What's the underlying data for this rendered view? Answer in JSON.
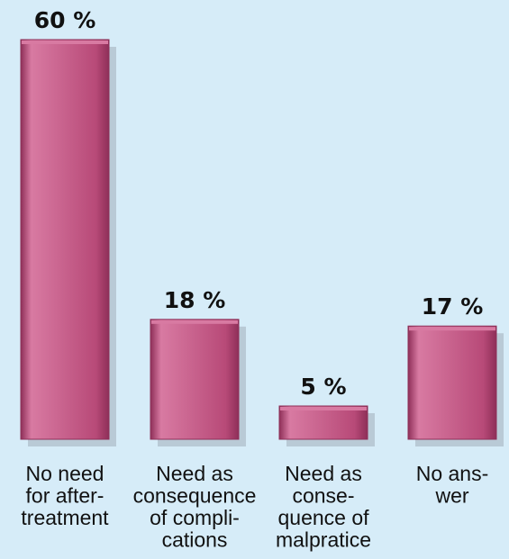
{
  "chart_data": {
    "type": "bar",
    "categories": [
      [
        "No need",
        "for after-",
        "treatment"
      ],
      [
        "Need as",
        "consequence",
        "of compli-",
        "cations"
      ],
      [
        "Need as",
        "conse-",
        "quence of",
        "malpratice"
      ],
      [
        "No ans-",
        "wer"
      ]
    ],
    "values": [
      60,
      18,
      5,
      17
    ],
    "value_labels": [
      "60 %",
      "18 %",
      "5 %",
      "17 %"
    ],
    "ylim": [
      0,
      60
    ],
    "grid": false,
    "legend": "none",
    "colors": {
      "background": "#d6ecf8",
      "bar_fill": "#b84a78",
      "bar_highlight": "#d87aa2",
      "bar_dark": "#8e2f58",
      "shadow": "#b9cad6"
    }
  }
}
